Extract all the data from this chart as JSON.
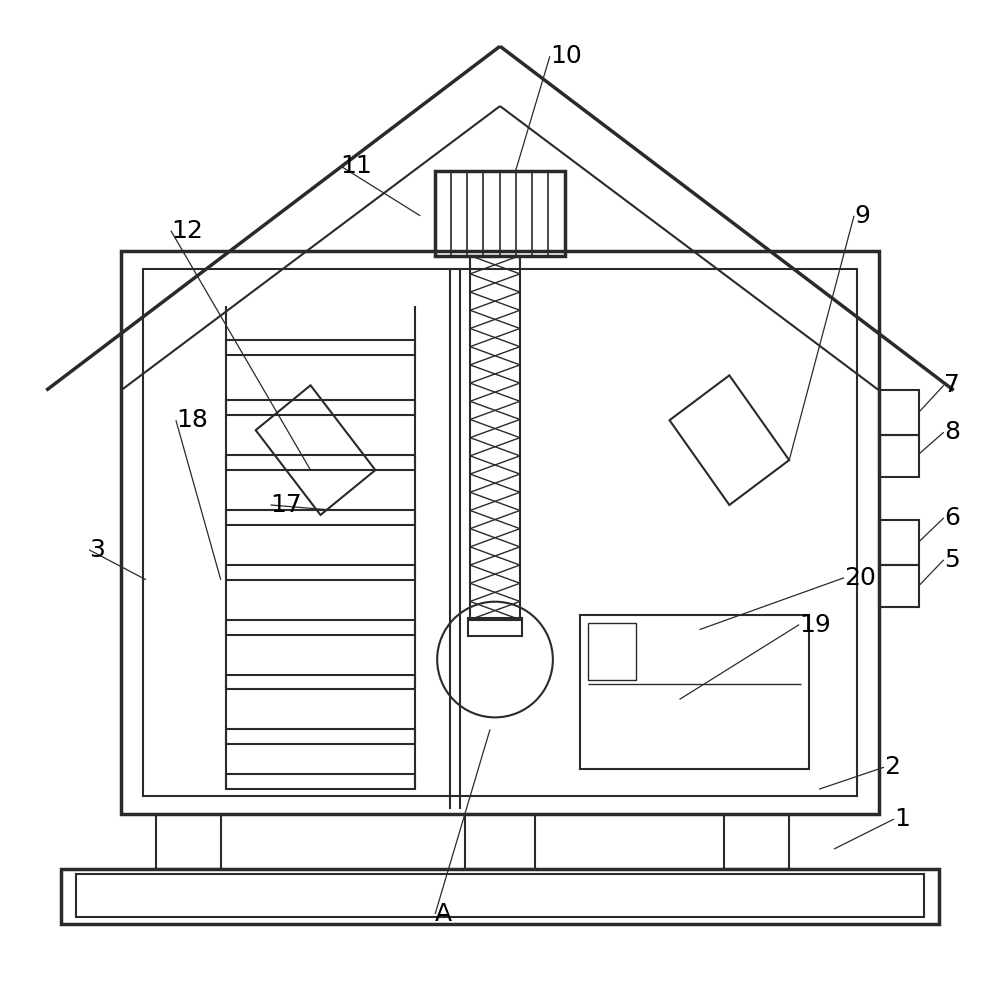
{
  "bg": "#ffffff",
  "lc": "#2a2a2a",
  "lw": 1.5,
  "tlw": 2.5,
  "fs": 18
}
